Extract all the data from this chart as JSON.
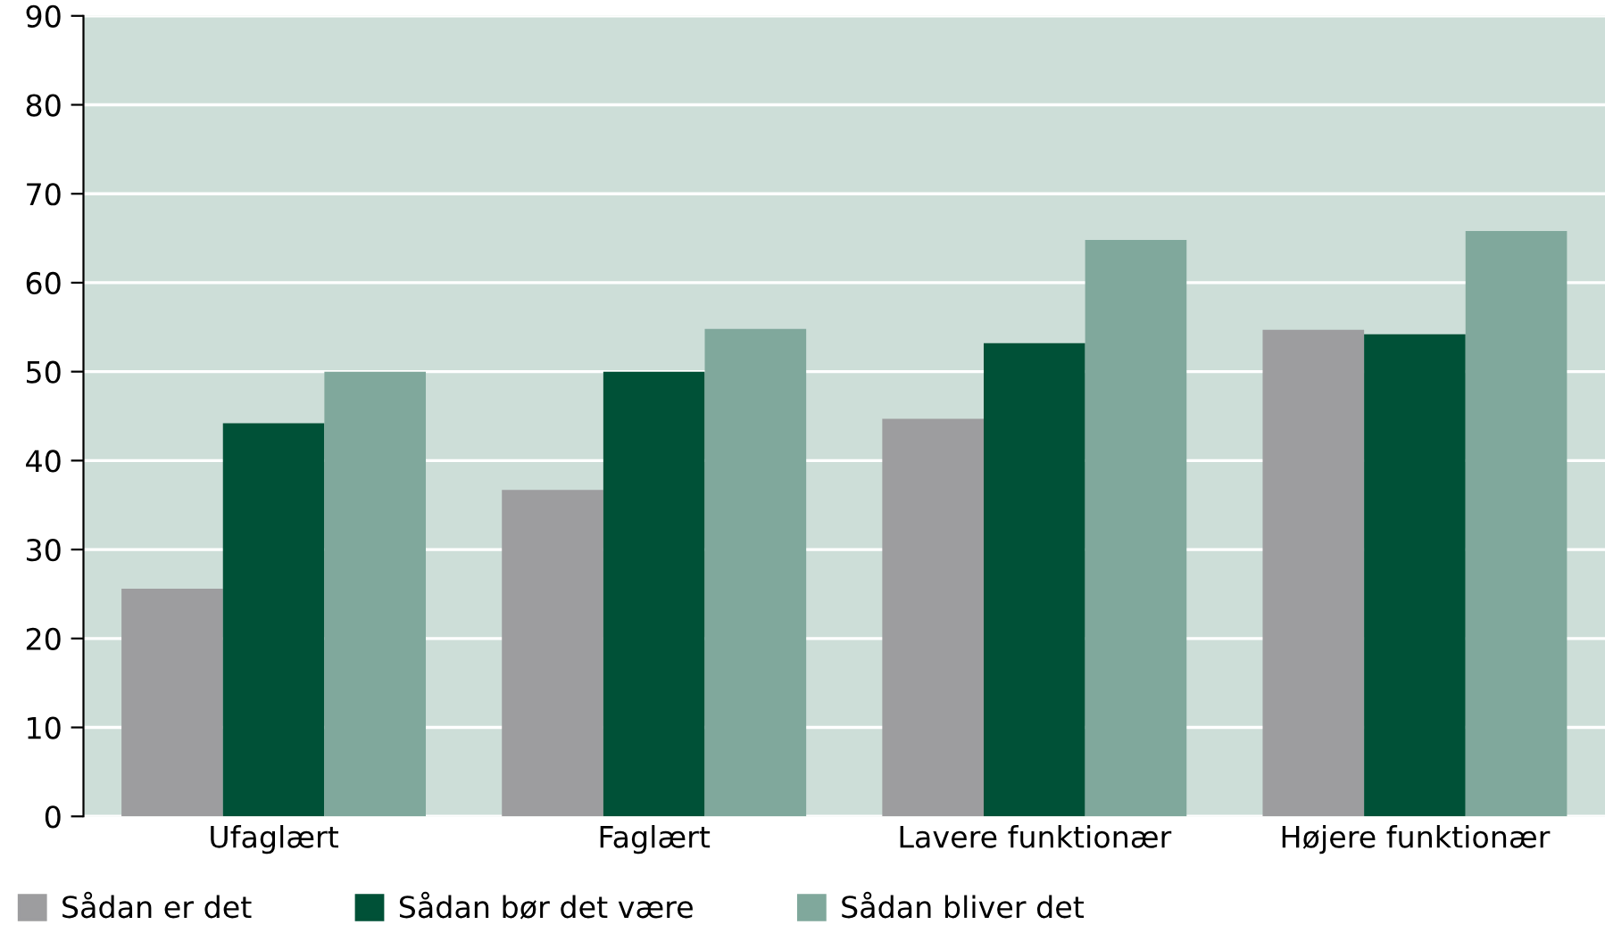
{
  "chart_data": {
    "type": "bar",
    "categories": [
      "Ufaglært",
      "Faglært",
      "Lavere funktionær",
      "Højere funktionær"
    ],
    "series": [
      {
        "name": "Sådan er det",
        "color": "#9d9d9f",
        "values": [
          25.6,
          36.7,
          44.7,
          54.7
        ]
      },
      {
        "name": "Sådan bør det være",
        "color": "#005137",
        "values": [
          44.2,
          50.0,
          53.2,
          54.2
        ]
      },
      {
        "name": "Sådan bliver det",
        "color": "#80a89c",
        "values": [
          50.0,
          54.8,
          64.8,
          65.8
        ]
      }
    ],
    "ylim": [
      0,
      90
    ],
    "yticks": [
      0,
      10,
      20,
      30,
      40,
      50,
      60,
      70,
      80,
      90
    ],
    "grid": "y",
    "legend": "bottom"
  }
}
